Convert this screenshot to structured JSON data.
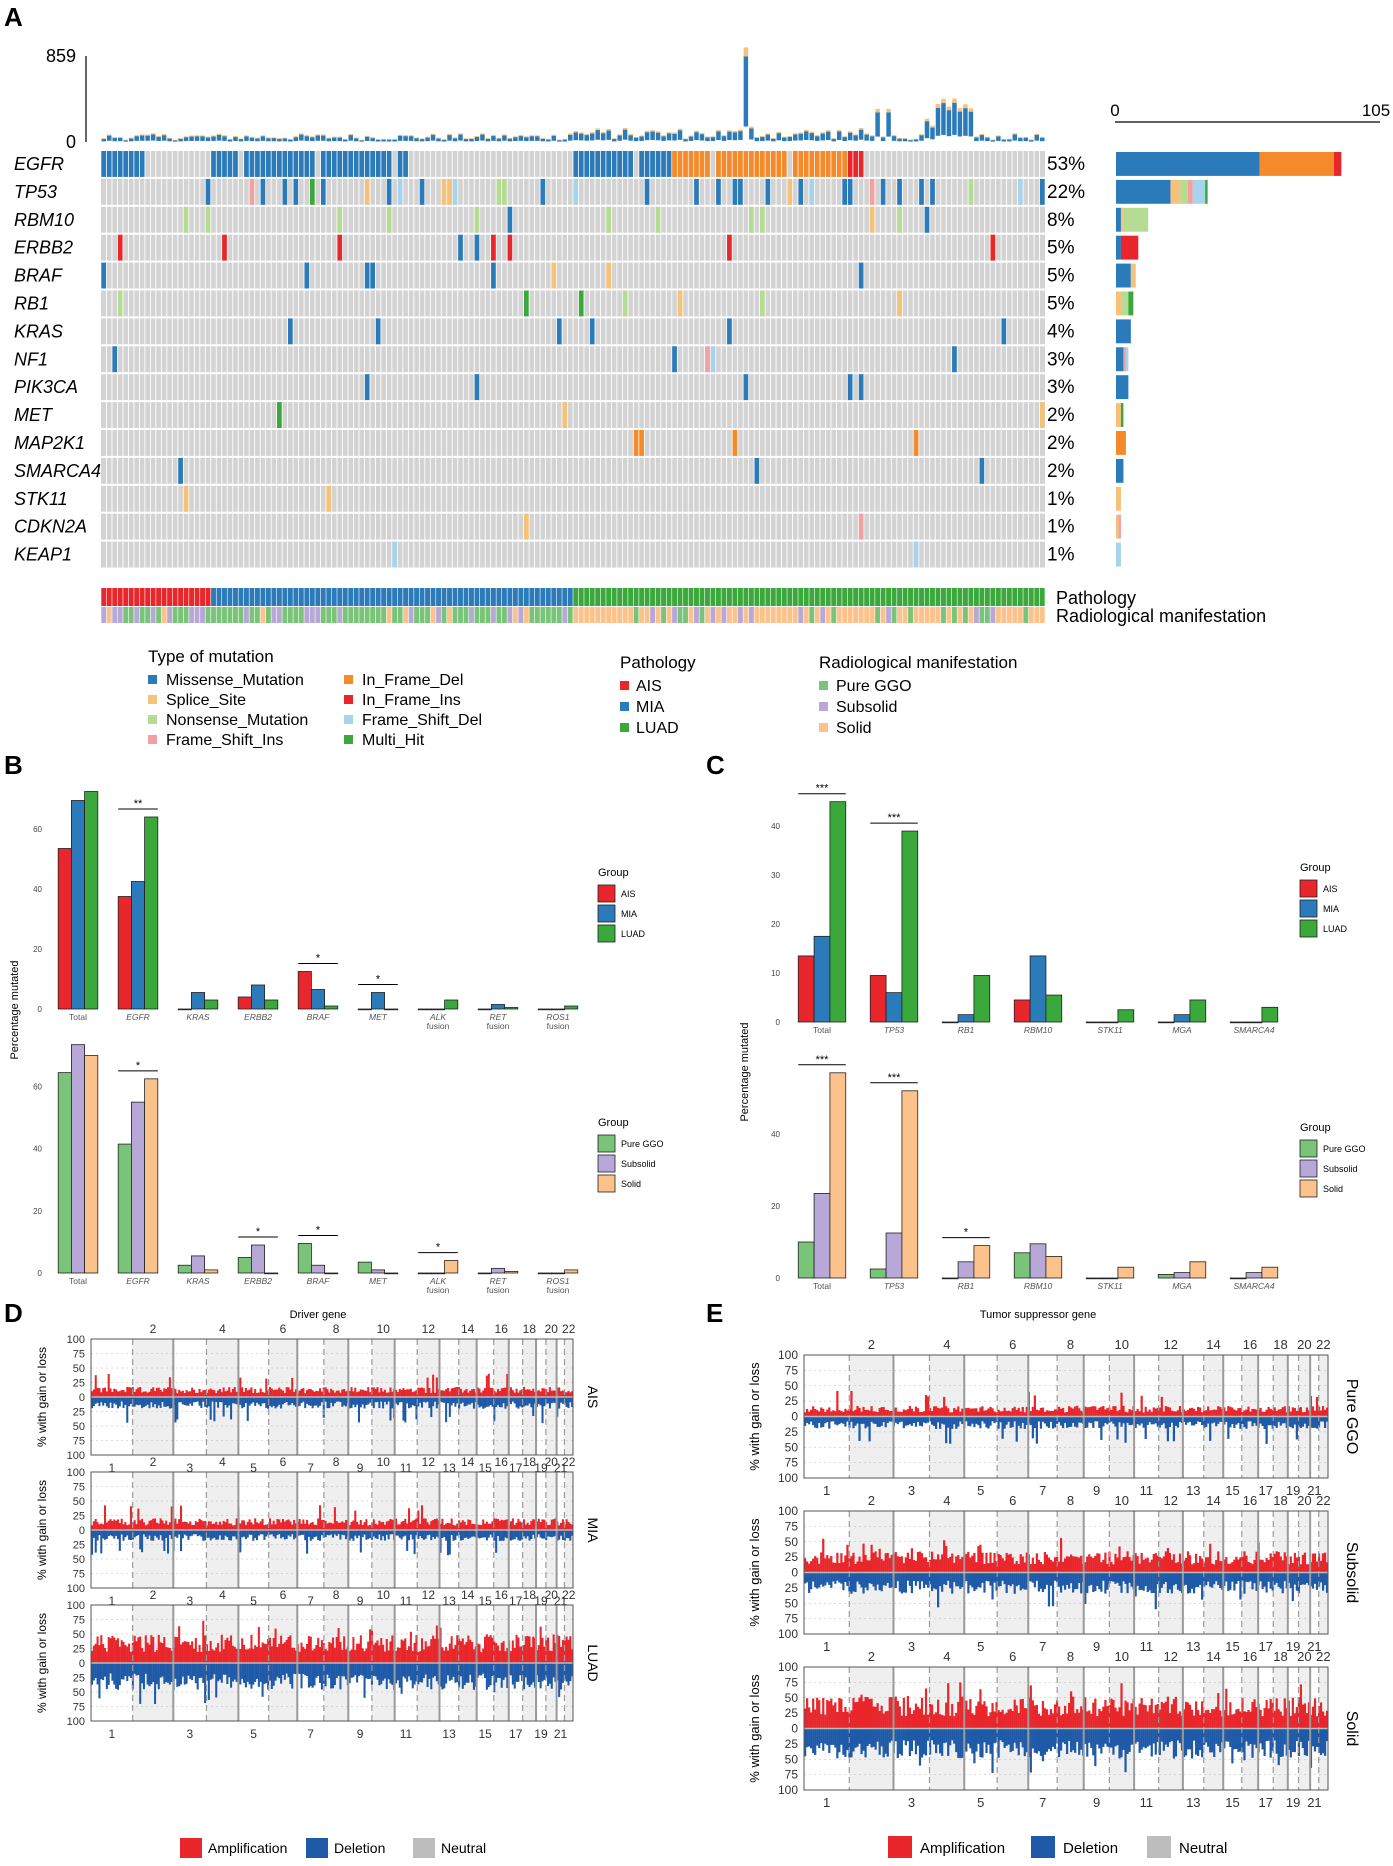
{
  "colors": {
    "missense": "#2b7bba",
    "splice": "#f6c27a",
    "nonsense": "#b5dc92",
    "frame_shift_ins": "#f2a0a0",
    "in_frame_del": "#f58a2b",
    "in_frame_ins": "#e8262b",
    "frame_shift_del": "#a8d3ec",
    "multi_hit": "#3aa83a",
    "AIS": "#e8262b",
    "MIA": "#2b7bba",
    "LUAD": "#3aa83a",
    "pure_ggo": "#7ac47a",
    "subsolid": "#b7a8d8",
    "solid": "#fbc28b",
    "amplification": "#e8262b",
    "deletion": "#1f5aa8",
    "neutral": "#bdbdbd",
    "grid_bg": "#d3d3d3"
  },
  "panel_labels": {
    "a": "A",
    "b": "B",
    "c": "C",
    "d": "D",
    "e": "E"
  },
  "oncoplot": {
    "tmb_axis": {
      "max_label": "859",
      "min_label": "0"
    },
    "bar_axis": {
      "min_label": "0",
      "max_label": "105"
    },
    "genes": [
      "EGFR",
      "TP53",
      "RBM10",
      "ERBB2",
      "BRAF",
      "RB1",
      "KRAS",
      "NF1",
      "PIK3CA",
      "MET",
      "MAP2K1",
      "SMARCA4",
      "STK11",
      "CDKN2A",
      "KEAP1"
    ],
    "percents": [
      "53%",
      "22%",
      "8%",
      "5%",
      "5%",
      "5%",
      "4%",
      "3%",
      "3%",
      "2%",
      "2%",
      "2%",
      "1%",
      "1%",
      "1%"
    ],
    "gene_counts": [
      [
        [
          "missense",
          58
        ],
        [
          "in_frame_del",
          30
        ],
        [
          "in_frame_ins",
          3
        ]
      ],
      [
        [
          "missense",
          22
        ],
        [
          "splice",
          4
        ],
        [
          "nonsense",
          3
        ],
        [
          "frame_shift_ins",
          2
        ],
        [
          "frame_shift_del",
          5
        ],
        [
          "multi_hit",
          1
        ]
      ],
      [
        [
          "missense",
          2
        ],
        [
          "splice",
          1
        ],
        [
          "nonsense",
          10
        ]
      ],
      [
        [
          "missense",
          2
        ],
        [
          "in_frame_ins",
          7
        ]
      ],
      [
        [
          "missense",
          6
        ],
        [
          "splice",
          2
        ]
      ],
      [
        [
          "splice",
          2
        ],
        [
          "nonsense",
          3
        ],
        [
          "multi_hit",
          2
        ]
      ],
      [
        [
          "missense",
          6
        ]
      ],
      [
        [
          "missense",
          3
        ],
        [
          "frame_shift_ins",
          1
        ],
        [
          "frame_shift_del",
          1
        ]
      ],
      [
        [
          "missense",
          5
        ]
      ],
      [
        [
          "splice",
          2
        ],
        [
          "multi_hit",
          1
        ]
      ],
      [
        [
          "in_frame_del",
          4
        ]
      ],
      [
        [
          "missense",
          3
        ]
      ],
      [
        [
          "splice",
          2
        ]
      ],
      [
        [
          "splice",
          1
        ],
        [
          "frame_shift_ins",
          1
        ]
      ],
      [
        [
          "frame_shift_del",
          2
        ]
      ]
    ],
    "track_labels": {
      "pathology": "Pathology",
      "radiological": "Radiological manifestation"
    },
    "legend": {
      "type_title": "Type of mutation",
      "types": [
        {
          "key": "missense",
          "label": "Missense_Mutation"
        },
        {
          "key": "splice",
          "label": "Splice_Site"
        },
        {
          "key": "nonsense",
          "label": "Nonsense_Mutation"
        },
        {
          "key": "frame_shift_ins",
          "label": "Frame_Shift_Ins"
        },
        {
          "key": "in_frame_del",
          "label": "In_Frame_Del"
        },
        {
          "key": "in_frame_ins",
          "label": "In_Frame_Ins"
        },
        {
          "key": "frame_shift_del",
          "label": "Frame_Shift_Del"
        },
        {
          "key": "multi_hit",
          "label": "Multi_Hit"
        }
      ],
      "pathology_title": "Pathology",
      "pathology": [
        {
          "key": "AIS",
          "label": "AIS"
        },
        {
          "key": "MIA",
          "label": "MIA"
        },
        {
          "key": "LUAD",
          "label": "LUAD"
        }
      ],
      "radio_title": "Radiological manifestation",
      "radio": [
        {
          "key": "pure_ggo",
          "label": "Pure GGO"
        },
        {
          "key": "subsolid",
          "label": "Subsolid"
        },
        {
          "key": "solid",
          "label": "Solid"
        }
      ]
    }
  },
  "chart_data": [
    {
      "id": "B-top",
      "type": "bar",
      "ylabel": "Percentage mutated",
      "ylim": [
        0,
        75
      ],
      "yticks": [
        0,
        20,
        40,
        60
      ],
      "categories": [
        "Total",
        "EGFR",
        "KRAS",
        "ERBB2",
        "BRAF",
        "MET",
        "ALK fusion",
        "RET fusion",
        "ROS1 fusion"
      ],
      "category_lines": [
        [
          "Total"
        ],
        [
          "EGFR"
        ],
        [
          "KRAS"
        ],
        [
          "ERBB2"
        ],
        [
          "BRAF"
        ],
        [
          "MET"
        ],
        [
          "ALK",
          "fusion"
        ],
        [
          "RET",
          "fusion"
        ],
        [
          "ROS1",
          "fusion"
        ]
      ],
      "series": [
        {
          "name": "AIS",
          "color_key": "AIS",
          "values": [
            53.5,
            37.5,
            0,
            4,
            12.5,
            0,
            0,
            0,
            0
          ]
        },
        {
          "name": "MIA",
          "color_key": "MIA",
          "values": [
            69.5,
            42.5,
            5.5,
            8,
            6.5,
            5.5,
            0,
            1.5,
            0
          ]
        },
        {
          "name": "LUAD",
          "color_key": "LUAD",
          "values": [
            72.5,
            64,
            3,
            3,
            1,
            0,
            3,
            0.5,
            1
          ]
        }
      ],
      "signif": [
        {
          "category": 1,
          "label": "**"
        },
        {
          "category": 4,
          "label": "*"
        },
        {
          "category": 5,
          "label": "*"
        }
      ],
      "legend_title": "Group"
    },
    {
      "id": "B-bottom",
      "type": "bar",
      "xlabel": "Driver gene",
      "ylim": [
        0,
        75
      ],
      "yticks": [
        0,
        20,
        40,
        60
      ],
      "categories": [
        "Total",
        "EGFR",
        "KRAS",
        "ERBB2",
        "BRAF",
        "MET",
        "ALK fusion",
        "RET fusion",
        "ROS1 fusion"
      ],
      "category_lines": [
        [
          "Total"
        ],
        [
          "EGFR"
        ],
        [
          "KRAS"
        ],
        [
          "ERBB2"
        ],
        [
          "BRAF"
        ],
        [
          "MET"
        ],
        [
          "ALK",
          "fusion"
        ],
        [
          "RET",
          "fusion"
        ],
        [
          "ROS1",
          "fusion"
        ]
      ],
      "series": [
        {
          "name": "Pure GGO",
          "color_key": "pure_ggo",
          "values": [
            64.5,
            41.5,
            2.5,
            5,
            9.5,
            3.5,
            0,
            0,
            0
          ]
        },
        {
          "name": "Subsolid",
          "color_key": "subsolid",
          "values": [
            73.5,
            55,
            5.5,
            9,
            2.5,
            1,
            0,
            1.5,
            0
          ]
        },
        {
          "name": "Solid",
          "color_key": "solid",
          "values": [
            70,
            62.5,
            1,
            0,
            0,
            0,
            4,
            0.5,
            1
          ]
        }
      ],
      "signif": [
        {
          "category": 1,
          "label": "*"
        },
        {
          "category": 3,
          "label": "*"
        },
        {
          "category": 4,
          "label": "*"
        },
        {
          "category": 6,
          "label": "*"
        }
      ],
      "legend_title": "Group"
    },
    {
      "id": "C-top",
      "type": "bar",
      "ylabel": "Percentage mutated",
      "ylim": [
        0,
        48
      ],
      "yticks": [
        0,
        10,
        20,
        30,
        40
      ],
      "categories": [
        "Total",
        "TP53",
        "RB1",
        "RBM10",
        "STK11",
        "MGA",
        "SMARCA4"
      ],
      "category_lines": [
        [
          "Total"
        ],
        [
          "TP53"
        ],
        [
          "RB1"
        ],
        [
          "RBM10"
        ],
        [
          "STK11"
        ],
        [
          "MGA"
        ],
        [
          "SMARCA4"
        ]
      ],
      "series": [
        {
          "name": "AIS",
          "color_key": "AIS",
          "values": [
            13.5,
            9.5,
            0,
            4.5,
            0,
            0,
            0
          ]
        },
        {
          "name": "MIA",
          "color_key": "MIA",
          "values": [
            17.5,
            6,
            1.5,
            13.5,
            0,
            1.5,
            0
          ]
        },
        {
          "name": "LUAD",
          "color_key": "LUAD",
          "values": [
            45,
            39,
            9.5,
            5.5,
            2.5,
            4.5,
            3
          ]
        }
      ],
      "signif": [
        {
          "category": 0,
          "label": "***"
        },
        {
          "category": 1,
          "label": "***"
        }
      ],
      "legend_title": "Group"
    },
    {
      "id": "C-bottom",
      "type": "bar",
      "xlabel": "Tumor suppressor gene",
      "ylim": [
        0,
        60
      ],
      "yticks": [
        0,
        20,
        40
      ],
      "categories": [
        "Total",
        "TP53",
        "RB1",
        "RBM10",
        "STK11",
        "MGA",
        "SMARCA4"
      ],
      "category_lines": [
        [
          "Total"
        ],
        [
          "TP53"
        ],
        [
          "RB1"
        ],
        [
          "RBM10"
        ],
        [
          "STK11"
        ],
        [
          "MGA"
        ],
        [
          "SMARCA4"
        ]
      ],
      "series": [
        {
          "name": "Pure GGO",
          "color_key": "pure_ggo",
          "values": [
            10,
            2.5,
            0,
            7,
            0,
            1,
            0
          ]
        },
        {
          "name": "Subsolid",
          "color_key": "subsolid",
          "values": [
            23.5,
            12.5,
            4.5,
            9.5,
            0,
            1.5,
            1.5
          ]
        },
        {
          "name": "Solid",
          "color_key": "solid",
          "values": [
            57,
            52,
            9,
            6,
            3,
            4.5,
            3
          ]
        }
      ],
      "signif": [
        {
          "category": 0,
          "label": "***"
        },
        {
          "category": 1,
          "label": "***"
        },
        {
          "category": 2,
          "label": "*"
        }
      ],
      "legend_title": "Group"
    }
  ],
  "cnv": {
    "ylabel": "% with gain or loss",
    "yticks": [
      "100",
      "75",
      "50",
      "25",
      "0",
      "25",
      "50",
      "75",
      "100"
    ],
    "top_chrom_labels": [
      "2",
      "4",
      "6",
      "8",
      "10",
      "12",
      "14",
      "16",
      "18",
      "20",
      "22"
    ],
    "bottom_chrom_labels": [
      "1",
      "3",
      "5",
      "7",
      "9",
      "11",
      "13",
      "15",
      "17",
      "19",
      "21"
    ],
    "chrom_sizes": [
      249,
      243,
      198,
      191,
      181,
      171,
      159,
      146,
      141,
      136,
      135,
      133,
      115,
      107,
      102,
      90,
      83,
      80,
      59,
      64,
      47,
      51
    ],
    "panels_d": [
      {
        "label": "AIS",
        "amp": 12,
        "del": 14
      },
      {
        "label": "MIA",
        "amp": 14,
        "del": 13
      },
      {
        "label": "LUAD",
        "amp": 34,
        "del": 32
      }
    ],
    "panels_e": [
      {
        "label": "Pure GGO",
        "amp": 12,
        "del": 14
      },
      {
        "label": "Subsolid",
        "amp": 24,
        "del": 24
      },
      {
        "label": "Solid",
        "amp": 36,
        "del": 34
      }
    ],
    "legend": {
      "amplification": "Amplification",
      "deletion": "Deletion",
      "neutral": "Neutral"
    }
  }
}
